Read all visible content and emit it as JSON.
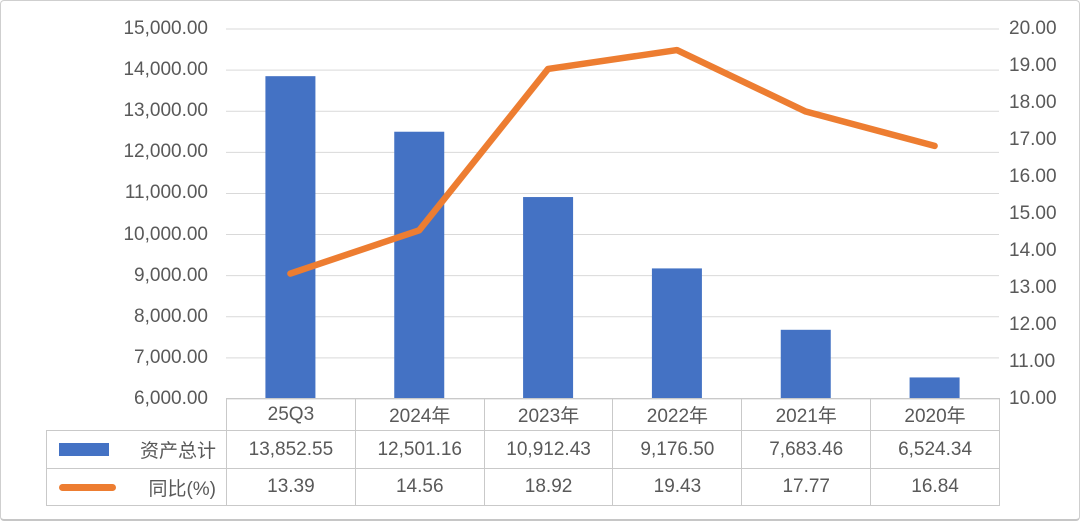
{
  "chart_data": {
    "type": "bar+line combo",
    "title": "",
    "xlabel": "",
    "ylabel": "",
    "grid": true,
    "legend_position": "data-table-left",
    "categories": [
      "25Q3",
      "2024年",
      "2023年",
      "2022年",
      "2021年",
      "2020年"
    ],
    "series": [
      {
        "name": "资产总计",
        "type": "bar",
        "axis": "left",
        "color": "#4472C4",
        "values": [
          13852.55,
          12501.16,
          10912.43,
          9176.5,
          7683.46,
          6524.34
        ],
        "display_values": [
          "13,852.55",
          "12,501.16",
          "10,912.43",
          "9,176.50",
          "7,683.46",
          "6,524.34"
        ]
      },
      {
        "name": "同比(%)",
        "type": "line",
        "axis": "right",
        "color": "#ED7D31",
        "values": [
          13.39,
          14.56,
          18.92,
          19.43,
          17.77,
          16.84
        ],
        "display_values": [
          "13.39",
          "14.56",
          "18.92",
          "19.43",
          "17.77",
          "16.84"
        ]
      }
    ],
    "left_axis": {
      "min": 6000,
      "max": 15000,
      "tick_step": 1000,
      "tick_labels_top_to_bottom": [
        "15,000.00",
        "14,000.00",
        "13,000.00",
        "12,000.00",
        "11,000.00",
        "10,000.00",
        "9,000.00",
        "8,000.00",
        "7,000.00",
        "6,000.00"
      ]
    },
    "right_axis": {
      "min": 10,
      "max": 20,
      "tick_step": 1,
      "tick_labels_top_to_bottom": [
        "20.00",
        "19.00",
        "18.00",
        "17.00",
        "16.00",
        "15.00",
        "14.00",
        "13.00",
        "12.00",
        "11.00",
        "10.00"
      ]
    }
  },
  "colors": {
    "bar": "#4472C4",
    "line": "#ED7D31",
    "gridline": "#D9D9D9",
    "table_border": "#C9C9C9",
    "text": "#595959",
    "background": "#FFFFFF",
    "frame_border": "#CFCFCF"
  }
}
